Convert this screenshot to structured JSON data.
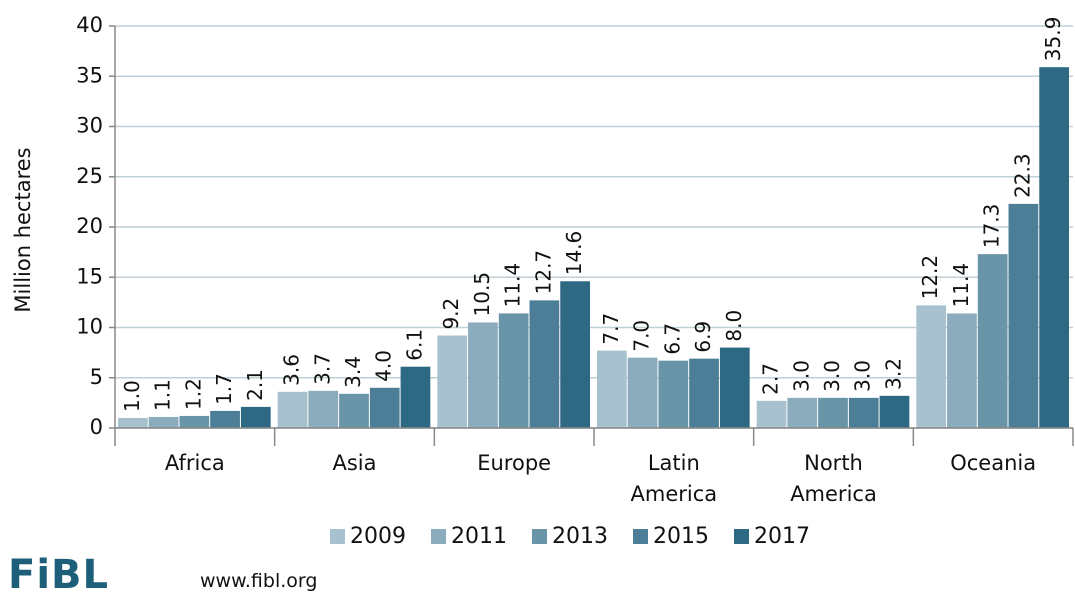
{
  "chart_data": {
    "type": "bar",
    "y_label": "Million hectares",
    "categories": [
      "Africa",
      "Asia",
      "Europe",
      "Latin America",
      "North America",
      "Oceania"
    ],
    "series": [
      {
        "name": "2009",
        "color": "#a7c2ce",
        "values": [
          1.0,
          3.6,
          9.2,
          7.7,
          2.7,
          12.2
        ],
        "value_labels": [
          "1.0",
          "3.6",
          "9.2",
          "7.7",
          "2.7",
          "12.2"
        ]
      },
      {
        "name": "2011",
        "color": "#8aacbc",
        "values": [
          1.1,
          3.7,
          10.5,
          7.0,
          3.0,
          11.4
        ],
        "value_labels": [
          "1.1",
          "3.7",
          "10.5",
          "7.0",
          "3.0",
          "11.4"
        ]
      },
      {
        "name": "2013",
        "color": "#6a94a8",
        "values": [
          1.2,
          3.4,
          11.4,
          6.7,
          3.0,
          17.3
        ],
        "value_labels": [
          "1.2",
          "3.4",
          "11.4",
          "6.7",
          "3.0",
          "17.3"
        ]
      },
      {
        "name": "2015",
        "color": "#4c7e97",
        "values": [
          1.7,
          4.0,
          12.7,
          6.9,
          3.0,
          22.3
        ],
        "value_labels": [
          "1.7",
          "4.0",
          "12.7",
          "6.9",
          "3.0",
          "22.3"
        ]
      },
      {
        "name": "2017",
        "color": "#2e6984",
        "values": [
          2.1,
          6.1,
          14.6,
          8.0,
          3.2,
          35.9
        ],
        "value_labels": [
          "2.1",
          "6.1",
          "14.6",
          "8.0",
          "3.2",
          "35.9"
        ]
      }
    ],
    "ylim": [
      0,
      40
    ],
    "yticks": [
      0,
      5,
      10,
      15,
      20,
      25,
      30,
      35,
      40
    ],
    "grid": true,
    "legend": "bottom"
  },
  "footer": {
    "logo": "FiBL",
    "source": "www.fibl.org"
  }
}
